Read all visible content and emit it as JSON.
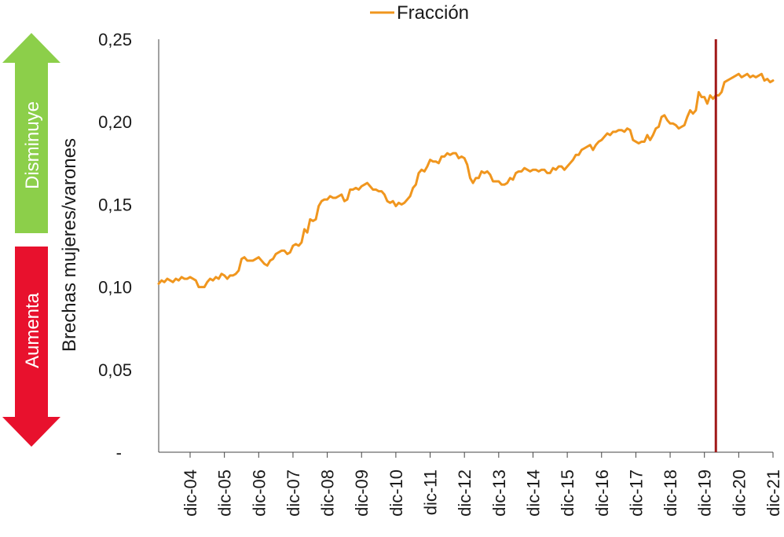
{
  "colors": {
    "series": "#f0961e",
    "marker_line": "#a01818",
    "arrow_up": "#8ccf4a",
    "arrow_down": "#e8112d",
    "axis": "#444444"
  },
  "side_arrows": {
    "up_label": "Disminuye",
    "down_label": "Aumenta"
  },
  "chart_data": {
    "type": "line",
    "ylabel": "Brechas mujeres/varones",
    "ylim": [
      0,
      0.25
    ],
    "y_ticks": [
      {
        "value": 0,
        "label": "-"
      },
      {
        "value": 0.05,
        "label": "0,05"
      },
      {
        "value": 0.1,
        "label": "0,10"
      },
      {
        "value": 0.15,
        "label": "0,15"
      },
      {
        "value": 0.2,
        "label": "0,20"
      },
      {
        "value": 0.25,
        "label": "0,25"
      }
    ],
    "x_ticks": [
      "dic-04",
      "dic-05",
      "dic-06",
      "dic-07",
      "dic-08",
      "dic-09",
      "dic-10",
      "dic-11",
      "dic-12",
      "dic-13",
      "dic-14",
      "dic-15",
      "dic-16",
      "dic-17",
      "dic-18",
      "dic-19",
      "dic-20",
      "dic-21"
    ],
    "x_start_index": -11,
    "x_end_index": 204,
    "legend": {
      "position": "top",
      "entries": [
        "Fracción"
      ]
    },
    "vertical_line_index": 184,
    "series": [
      {
        "name": "Fracción",
        "points": [
          [
            -11,
            0.102
          ],
          [
            -10,
            0.104
          ],
          [
            -9,
            0.103
          ],
          [
            -8,
            0.105
          ],
          [
            -7,
            0.104
          ],
          [
            -6,
            0.103
          ],
          [
            -5,
            0.105
          ],
          [
            -4,
            0.104
          ],
          [
            -3,
            0.106
          ],
          [
            -2,
            0.105
          ],
          [
            -1,
            0.105
          ],
          [
            0,
            0.106
          ],
          [
            1,
            0.105
          ],
          [
            2,
            0.104
          ],
          [
            3,
            0.1
          ],
          [
            4,
            0.1
          ],
          [
            5,
            0.1
          ],
          [
            6,
            0.103
          ],
          [
            7,
            0.105
          ],
          [
            8,
            0.104
          ],
          [
            9,
            0.106
          ],
          [
            10,
            0.105
          ],
          [
            11,
            0.108
          ],
          [
            12,
            0.107
          ],
          [
            13,
            0.105
          ],
          [
            14,
            0.107
          ],
          [
            15,
            0.107
          ],
          [
            16,
            0.108
          ],
          [
            17,
            0.11
          ],
          [
            18,
            0.117
          ],
          [
            19,
            0.118
          ],
          [
            20,
            0.116
          ],
          [
            21,
            0.116
          ],
          [
            22,
            0.116
          ],
          [
            23,
            0.117
          ],
          [
            24,
            0.118
          ],
          [
            25,
            0.116
          ],
          [
            26,
            0.114
          ],
          [
            27,
            0.113
          ],
          [
            28,
            0.116
          ],
          [
            29,
            0.117
          ],
          [
            30,
            0.12
          ],
          [
            31,
            0.121
          ],
          [
            32,
            0.122
          ],
          [
            33,
            0.122
          ],
          [
            34,
            0.12
          ],
          [
            35,
            0.121
          ],
          [
            36,
            0.125
          ],
          [
            37,
            0.126
          ],
          [
            38,
            0.125
          ],
          [
            39,
            0.127
          ],
          [
            40,
            0.135
          ],
          [
            41,
            0.133
          ],
          [
            42,
            0.141
          ],
          [
            43,
            0.14
          ],
          [
            44,
            0.141
          ],
          [
            45,
            0.149
          ],
          [
            46,
            0.152
          ],
          [
            47,
            0.153
          ],
          [
            48,
            0.153
          ],
          [
            49,
            0.155
          ],
          [
            50,
            0.154
          ],
          [
            51,
            0.154
          ],
          [
            52,
            0.155
          ],
          [
            53,
            0.156
          ],
          [
            54,
            0.152
          ],
          [
            55,
            0.153
          ],
          [
            56,
            0.159
          ],
          [
            57,
            0.159
          ],
          [
            58,
            0.16
          ],
          [
            59,
            0.159
          ],
          [
            60,
            0.161
          ],
          [
            61,
            0.162
          ],
          [
            62,
            0.163
          ],
          [
            63,
            0.161
          ],
          [
            64,
            0.159
          ],
          [
            65,
            0.159
          ],
          [
            66,
            0.158
          ],
          [
            67,
            0.158
          ],
          [
            68,
            0.156
          ],
          [
            69,
            0.152
          ],
          [
            70,
            0.151
          ],
          [
            71,
            0.152
          ],
          [
            72,
            0.149
          ],
          [
            73,
            0.151
          ],
          [
            74,
            0.15
          ],
          [
            75,
            0.151
          ],
          [
            76,
            0.153
          ],
          [
            77,
            0.155
          ],
          [
            78,
            0.16
          ],
          [
            79,
            0.162
          ],
          [
            80,
            0.169
          ],
          [
            81,
            0.171
          ],
          [
            82,
            0.17
          ],
          [
            83,
            0.173
          ],
          [
            84,
            0.177
          ],
          [
            85,
            0.176
          ],
          [
            86,
            0.176
          ],
          [
            87,
            0.175
          ],
          [
            88,
            0.179
          ],
          [
            89,
            0.179
          ],
          [
            90,
            0.181
          ],
          [
            91,
            0.18
          ],
          [
            92,
            0.181
          ],
          [
            93,
            0.181
          ],
          [
            94,
            0.178
          ],
          [
            95,
            0.179
          ],
          [
            96,
            0.178
          ],
          [
            97,
            0.174
          ],
          [
            98,
            0.166
          ],
          [
            99,
            0.163
          ],
          [
            100,
            0.166
          ],
          [
            101,
            0.166
          ],
          [
            102,
            0.17
          ],
          [
            103,
            0.169
          ],
          [
            104,
            0.17
          ],
          [
            105,
            0.168
          ],
          [
            106,
            0.164
          ],
          [
            107,
            0.164
          ],
          [
            108,
            0.164
          ],
          [
            109,
            0.162
          ],
          [
            110,
            0.162
          ],
          [
            111,
            0.163
          ],
          [
            112,
            0.166
          ],
          [
            113,
            0.165
          ],
          [
            114,
            0.169
          ],
          [
            115,
            0.17
          ],
          [
            116,
            0.17
          ],
          [
            117,
            0.172
          ],
          [
            118,
            0.171
          ],
          [
            119,
            0.17
          ],
          [
            120,
            0.171
          ],
          [
            121,
            0.171
          ],
          [
            122,
            0.17
          ],
          [
            123,
            0.171
          ],
          [
            124,
            0.171
          ],
          [
            125,
            0.169
          ],
          [
            126,
            0.169
          ],
          [
            127,
            0.172
          ],
          [
            128,
            0.171
          ],
          [
            129,
            0.173
          ],
          [
            130,
            0.173
          ],
          [
            131,
            0.171
          ],
          [
            132,
            0.173
          ],
          [
            133,
            0.175
          ],
          [
            134,
            0.177
          ],
          [
            135,
            0.18
          ],
          [
            136,
            0.18
          ],
          [
            137,
            0.183
          ],
          [
            138,
            0.184
          ],
          [
            139,
            0.185
          ],
          [
            140,
            0.186
          ],
          [
            141,
            0.183
          ],
          [
            142,
            0.186
          ],
          [
            143,
            0.188
          ],
          [
            144,
            0.189
          ],
          [
            145,
            0.191
          ],
          [
            146,
            0.193
          ],
          [
            147,
            0.192
          ],
          [
            148,
            0.194
          ],
          [
            149,
            0.194
          ],
          [
            150,
            0.195
          ],
          [
            151,
            0.195
          ],
          [
            152,
            0.194
          ],
          [
            153,
            0.196
          ],
          [
            154,
            0.195
          ],
          [
            155,
            0.189
          ],
          [
            156,
            0.188
          ],
          [
            157,
            0.187
          ],
          [
            158,
            0.188
          ],
          [
            159,
            0.188
          ],
          [
            160,
            0.192
          ],
          [
            161,
            0.189
          ],
          [
            162,
            0.192
          ],
          [
            163,
            0.196
          ],
          [
            164,
            0.197
          ],
          [
            165,
            0.203
          ],
          [
            166,
            0.204
          ],
          [
            167,
            0.201
          ],
          [
            168,
            0.199
          ],
          [
            169,
            0.199
          ],
          [
            170,
            0.198
          ],
          [
            171,
            0.196
          ],
          [
            172,
            0.197
          ],
          [
            173,
            0.198
          ],
          [
            174,
            0.203
          ],
          [
            175,
            0.207
          ],
          [
            176,
            0.205
          ],
          [
            177,
            0.207
          ],
          [
            178,
            0.218
          ],
          [
            179,
            0.215
          ],
          [
            180,
            0.215
          ],
          [
            181,
            0.211
          ],
          [
            182,
            0.216
          ],
          [
            183,
            0.214
          ],
          [
            184,
            0.216
          ],
          [
            185,
            0.216
          ],
          [
            186,
            0.218
          ],
          [
            187,
            0.224
          ],
          [
            188,
            0.225
          ],
          [
            189,
            0.226
          ],
          [
            190,
            0.227
          ],
          [
            191,
            0.228
          ],
          [
            192,
            0.229
          ],
          [
            193,
            0.227
          ],
          [
            194,
            0.228
          ],
          [
            195,
            0.229
          ],
          [
            196,
            0.227
          ],
          [
            197,
            0.228
          ],
          [
            198,
            0.227
          ],
          [
            199,
            0.228
          ],
          [
            200,
            0.229
          ],
          [
            201,
            0.225
          ],
          [
            202,
            0.226
          ],
          [
            203,
            0.224
          ],
          [
            204,
            0.225
          ]
        ]
      }
    ]
  }
}
